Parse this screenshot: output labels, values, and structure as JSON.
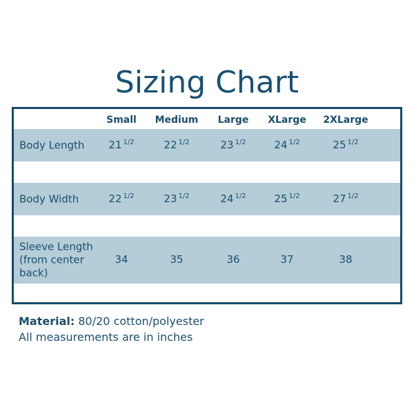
{
  "title": "Sizing Chart",
  "table": {
    "columns": [
      "Small",
      "Medium",
      "Large",
      "XLarge",
      "2XLarge"
    ],
    "rows": [
      {
        "label": "Body Length",
        "cells": [
          {
            "whole": "21",
            "fraction": "1/2"
          },
          {
            "whole": "22",
            "fraction": "1/2"
          },
          {
            "whole": "23",
            "fraction": "1/2"
          },
          {
            "whole": "24",
            "fraction": "1/2"
          },
          {
            "whole": "25",
            "fraction": "1/2"
          }
        ]
      },
      {
        "label": "Body Width",
        "cells": [
          {
            "whole": "22",
            "fraction": "1/2"
          },
          {
            "whole": "23",
            "fraction": "1/2"
          },
          {
            "whole": "24",
            "fraction": "1/2"
          },
          {
            "whole": "25",
            "fraction": "1/2"
          },
          {
            "whole": "27",
            "fraction": "1/2"
          }
        ]
      },
      {
        "label": "Sleeve Length (from center back)",
        "cells": [
          {
            "whole": "34"
          },
          {
            "whole": "35"
          },
          {
            "whole": "36"
          },
          {
            "whole": "37"
          },
          {
            "whole": "38"
          }
        ]
      }
    ]
  },
  "footer": {
    "material_label": "Material:",
    "material_value": "80/20 cotton/polyester",
    "units_note": "All measurements are in inches"
  }
}
